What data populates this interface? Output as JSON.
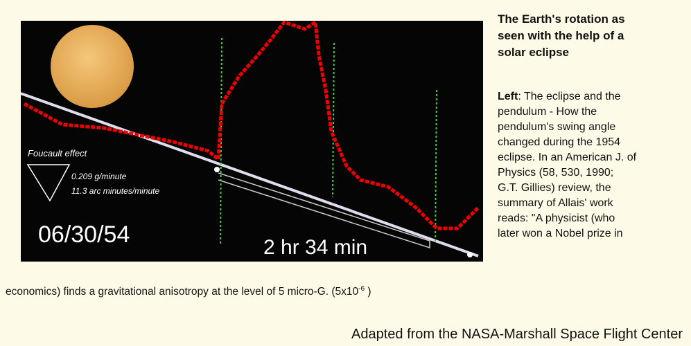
{
  "figure": {
    "foucault_label": "Foucault effect",
    "rate_g": "0.209 g/minute",
    "rate_arc": "11.3 arc minutes/minute",
    "date": "06/30/54",
    "duration": "2 hr 34 min"
  },
  "title_lines": [
    "The Earth's rotation as",
    "seen with the help of a",
    "solar eclipse"
  ],
  "body": {
    "lead": "Left",
    "lines": [
      ": The eclipse and the",
      "pendulum - How the",
      "pendulum's swing angle",
      "changed during the 1954",
      "eclipse. In an American J. of",
      "Physics (58, 530, 1990;",
      "G.T. Gillies) review, the",
      "summary of Allais' work",
      "reads: \"A physicist (who",
      "later won a Nobel prize in"
    ]
  },
  "continuation": {
    "text": "economics) finds a gravitational anisotropy at the level of 5 micro-G. (5x10",
    "superscript": "-6",
    "closing": " )"
  },
  "credit": "Adapted from the NASA-Marshall Space Flight Center"
}
